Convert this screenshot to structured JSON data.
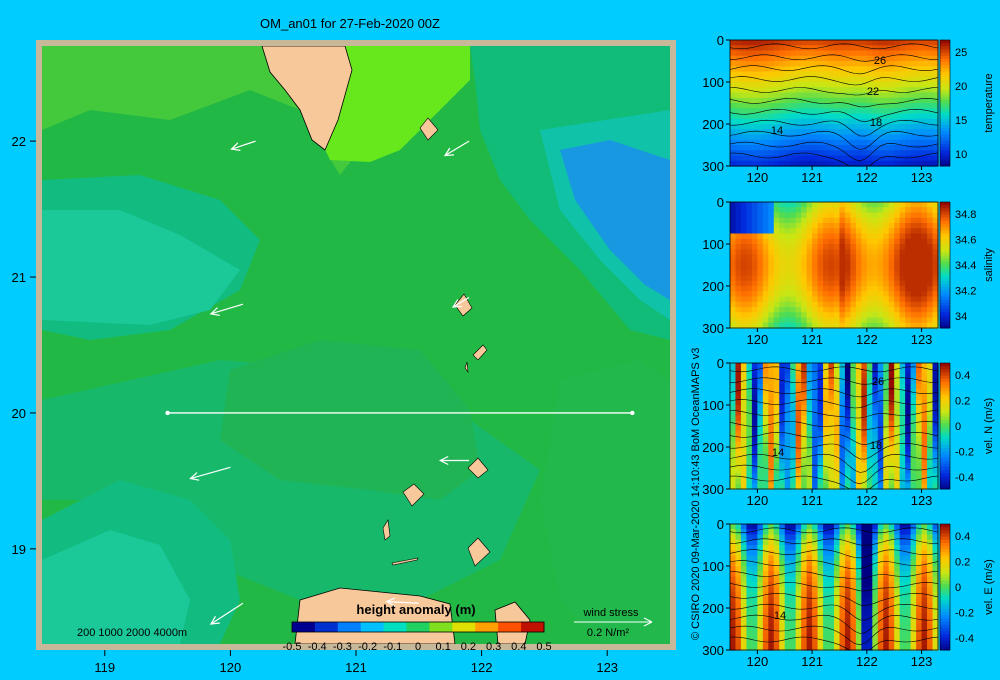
{
  "title": "OM_an01 for 27-Feb-2020 00Z",
  "credit": "© CSIRO 2020  09-Mar-2020 14:10:43 BoM OceanMAPS v3",
  "map": {
    "lon_ticks": [
      "119",
      "120",
      "121",
      "122",
      "123"
    ],
    "lat_ticks": [
      "22",
      "21",
      "20",
      "19"
    ],
    "depth_legend": "200  1000  2000  4000m",
    "colorbar_title": "height anomaly (m)",
    "colorbar_ticks": [
      "-0.5",
      "-0.4",
      "-0.3",
      "-0.2",
      "-0.1",
      "0",
      "0.1",
      "0.2",
      "0.3",
      "0.4",
      "0.5"
    ],
    "wind_stress_title": "wind stress",
    "wind_stress_scale": "0.2 N/m²",
    "section_line": {
      "lon_start": 119.5,
      "lon_end": 123.2,
      "lat": 20.0
    },
    "colors": {
      "frame": "#c8b89a",
      "land": "#f7c89a",
      "section": "#ffffff",
      "background": "#00ccff"
    }
  },
  "panels": [
    {
      "id": "temperature",
      "ylabel": "temperature",
      "x_ticks": [
        "120",
        "121",
        "122",
        "123"
      ],
      "y_ticks": [
        "0",
        "100",
        "200",
        "300"
      ],
      "cbar_ticks": [
        "25",
        "20",
        "15",
        "10"
      ],
      "contour_labels": [
        "26",
        "22",
        "18",
        "14"
      ]
    },
    {
      "id": "salinity",
      "ylabel": "salinity",
      "x_ticks": [
        "120",
        "121",
        "122",
        "123"
      ],
      "y_ticks": [
        "0",
        "100",
        "200",
        "300"
      ],
      "cbar_ticks": [
        "34.8",
        "34.6",
        "34.4",
        "34.2",
        "34"
      ],
      "contour_labels": []
    },
    {
      "id": "velN",
      "ylabel": "vel. N (m/s)",
      "x_ticks": [
        "120",
        "121",
        "122",
        "123"
      ],
      "y_ticks": [
        "0",
        "100",
        "200",
        "300"
      ],
      "cbar_ticks": [
        "0.4",
        "0.2",
        "0",
        "-0.2",
        "-0.4"
      ],
      "contour_labels": [
        "26",
        "18",
        "14"
      ]
    },
    {
      "id": "velE",
      "ylabel": "vel. E (m/s)",
      "x_ticks": [
        "120",
        "121",
        "122",
        "123"
      ],
      "y_ticks": [
        "0",
        "100",
        "200",
        "300"
      ],
      "cbar_ticks": [
        "0.4",
        "0.2",
        "0",
        "-0.2",
        "-0.4"
      ],
      "contour_labels": [
        "14"
      ]
    }
  ],
  "chart_data": [
    {
      "type": "heatmap",
      "title": "OM_an01 for 27-Feb-2020 00Z",
      "variable": "height anomaly (m)",
      "xlim": [
        118.5,
        123.5
      ],
      "ylim": [
        18.3,
        22.7
      ],
      "x_ticks": [
        119,
        120,
        121,
        122,
        123
      ],
      "y_ticks": [
        19,
        20,
        21,
        22
      ],
      "clim": [
        -0.5,
        0.5
      ],
      "section": {
        "lon": [
          119.5,
          123.2
        ],
        "lat": 20.0
      },
      "wind_stress_vectors": [
        {
          "lon": 120.2,
          "lat": 22.0,
          "u": -0.15,
          "v": -0.05
        },
        {
          "lon": 121.9,
          "lat": 22.0,
          "u": -0.15,
          "v": -0.09
        },
        {
          "lon": 120.1,
          "lat": 20.8,
          "u": -0.2,
          "v": -0.06
        },
        {
          "lon": 121.9,
          "lat": 20.85,
          "u": -0.1,
          "v": -0.06
        },
        {
          "lon": 120.0,
          "lat": 19.6,
          "u": -0.25,
          "v": -0.07
        },
        {
          "lon": 121.9,
          "lat": 19.65,
          "u": -0.18,
          "v": 0.0
        },
        {
          "lon": 120.1,
          "lat": 18.6,
          "u": -0.2,
          "v": -0.13
        },
        {
          "lon": 121.5,
          "lat": 18.6,
          "u": -0.2,
          "v": 0.01
        }
      ]
    },
    {
      "type": "heatmap",
      "title": "",
      "variable": "temperature",
      "xlim": [
        119.5,
        123.3
      ],
      "ylim": [
        300,
        0
      ],
      "clim": [
        8,
        29
      ],
      "contours": [
        14,
        18,
        22,
        26
      ]
    },
    {
      "type": "heatmap",
      "title": "",
      "variable": "salinity",
      "xlim": [
        119.5,
        123.3
      ],
      "ylim": [
        300,
        0
      ],
      "clim": [
        33.9,
        34.9
      ]
    },
    {
      "type": "heatmap",
      "title": "",
      "variable": "vel. N (m/s)",
      "xlim": [
        119.5,
        123.3
      ],
      "ylim": [
        300,
        0
      ],
      "clim": [
        -0.45,
        0.45
      ],
      "contours": [
        14,
        18,
        26
      ]
    },
    {
      "type": "heatmap",
      "title": "",
      "variable": "vel. E (m/s)",
      "xlim": [
        119.5,
        123.3
      ],
      "ylim": [
        300,
        0
      ],
      "clim": [
        -0.45,
        0.45
      ],
      "contours": [
        14
      ]
    }
  ]
}
